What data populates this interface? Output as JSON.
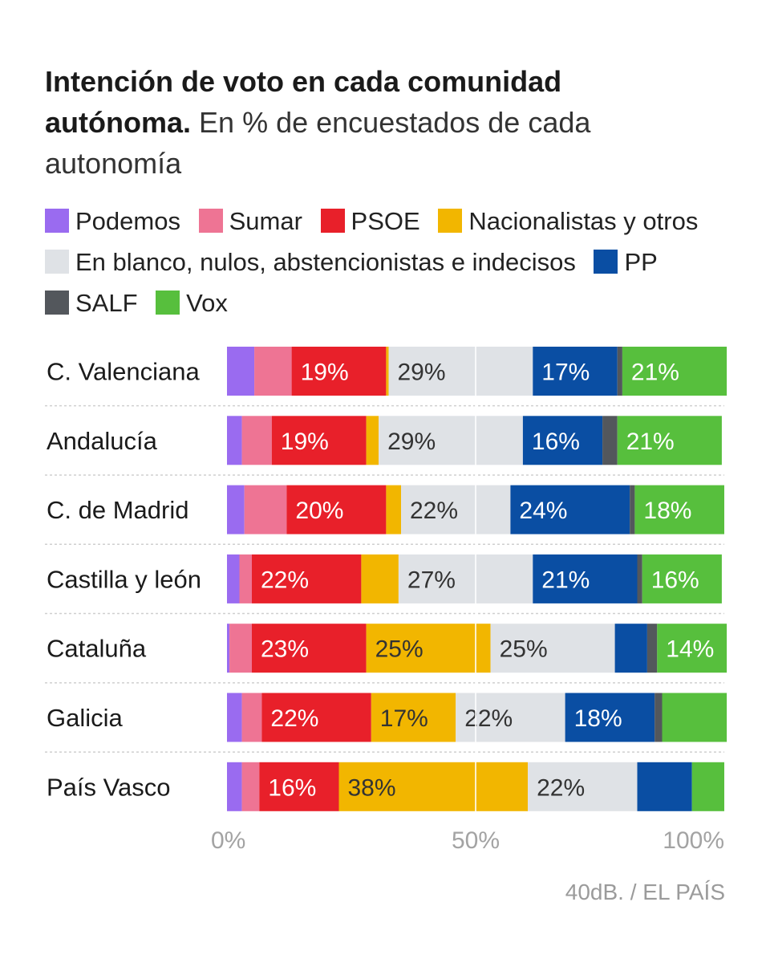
{
  "title": {
    "bold": "Intención de voto en cada comunidad autónoma.",
    "subtitle": "En % de encuestados de cada autonomía"
  },
  "source": "40dB. / EL PAÍS",
  "chart_data": {
    "type": "bar",
    "orientation": "horizontal",
    "stacked": true,
    "title": "Intención de voto en cada comunidad autónoma. En % de encuestados de cada autonomía",
    "xlabel": "",
    "ylabel": "",
    "xlim": [
      0,
      100
    ],
    "x_ticks": [
      0,
      50,
      100
    ],
    "x_tick_labels": [
      "0%",
      "50%",
      "100%"
    ],
    "grid": true,
    "legend_position": "top",
    "categories": [
      "C. Valenciana",
      "Andalucía",
      "C. de Madrid",
      "Castilla y león",
      "Cataluña",
      "Galicia",
      "País Vasco"
    ],
    "series": [
      {
        "name": "Podemos",
        "color": "#9a6bf0",
        "values": [
          5.5,
          3,
          3.5,
          2.5,
          0.5,
          3,
          3
        ]
      },
      {
        "name": "Sumar",
        "color": "#ee7494",
        "values": [
          7.5,
          6,
          8.5,
          2.5,
          4.5,
          4,
          3.5
        ]
      },
      {
        "name": "PSOE",
        "color": "#e8202a",
        "values": [
          19,
          19,
          20,
          22,
          23,
          22,
          16
        ]
      },
      {
        "name": "Nacionalistas y otros",
        "color": "#f2b600",
        "values": [
          0.5,
          2.5,
          3,
          7.5,
          25,
          17,
          38
        ]
      },
      {
        "name": "En blanco, nulos, abstencionistas e indecisos",
        "color": "#dfe2e6",
        "values": [
          29,
          29,
          22,
          27,
          25,
          22,
          22
        ]
      },
      {
        "name": "PP",
        "color": "#0a4ea3",
        "values": [
          17,
          16,
          24,
          21,
          6.5,
          18,
          11
        ]
      },
      {
        "name": "SALF",
        "color": "#53575c",
        "values": [
          1,
          3,
          1,
          1,
          2,
          1.5,
          0
        ]
      },
      {
        "name": "Vox",
        "color": "#57bf3d",
        "values": [
          21,
          21,
          18,
          16,
          14,
          13,
          6.5
        ]
      }
    ],
    "data_labels": [
      {
        "category": "C. Valenciana",
        "series": "PSOE",
        "text": "19%"
      },
      {
        "category": "C. Valenciana",
        "series": "En blanco, nulos, abstencionistas e indecisos",
        "text": "29%"
      },
      {
        "category": "C. Valenciana",
        "series": "PP",
        "text": "17%"
      },
      {
        "category": "C. Valenciana",
        "series": "Vox",
        "text": "21%"
      },
      {
        "category": "Andalucía",
        "series": "PSOE",
        "text": "19%"
      },
      {
        "category": "Andalucía",
        "series": "En blanco, nulos, abstencionistas e indecisos",
        "text": "29%"
      },
      {
        "category": "Andalucía",
        "series": "PP",
        "text": "16%"
      },
      {
        "category": "Andalucía",
        "series": "Vox",
        "text": "21%"
      },
      {
        "category": "C. de Madrid",
        "series": "PSOE",
        "text": "20%"
      },
      {
        "category": "C. de Madrid",
        "series": "En blanco, nulos, abstencionistas e indecisos",
        "text": "22%"
      },
      {
        "category": "C. de Madrid",
        "series": "PP",
        "text": "24%"
      },
      {
        "category": "C. de Madrid",
        "series": "Vox",
        "text": "18%"
      },
      {
        "category": "Castilla y león",
        "series": "PSOE",
        "text": "22%"
      },
      {
        "category": "Castilla y león",
        "series": "En blanco, nulos, abstencionistas e indecisos",
        "text": "27%"
      },
      {
        "category": "Castilla y león",
        "series": "PP",
        "text": "21%"
      },
      {
        "category": "Castilla y león",
        "series": "Vox",
        "text": "16%"
      },
      {
        "category": "Cataluña",
        "series": "PSOE",
        "text": "23%"
      },
      {
        "category": "Cataluña",
        "series": "Nacionalistas y otros",
        "text": "25%"
      },
      {
        "category": "Cataluña",
        "series": "En blanco, nulos, abstencionistas e indecisos",
        "text": "25%"
      },
      {
        "category": "Cataluña",
        "series": "Vox",
        "text": "14%"
      },
      {
        "category": "Galicia",
        "series": "PSOE",
        "text": "22%"
      },
      {
        "category": "Galicia",
        "series": "Nacionalistas y otros",
        "text": "17%"
      },
      {
        "category": "Galicia",
        "series": "En blanco, nulos, abstencionistas e indecisos",
        "text": "22%"
      },
      {
        "category": "Galicia",
        "series": "PP",
        "text": "18%"
      },
      {
        "category": "País Vasco",
        "series": "PSOE",
        "text": "16%"
      },
      {
        "category": "País Vasco",
        "series": "Nacionalistas y otros",
        "text": "38%"
      },
      {
        "category": "País Vasco",
        "series": "En blanco, nulos, abstencionistas e indecisos",
        "text": "22%"
      }
    ]
  }
}
